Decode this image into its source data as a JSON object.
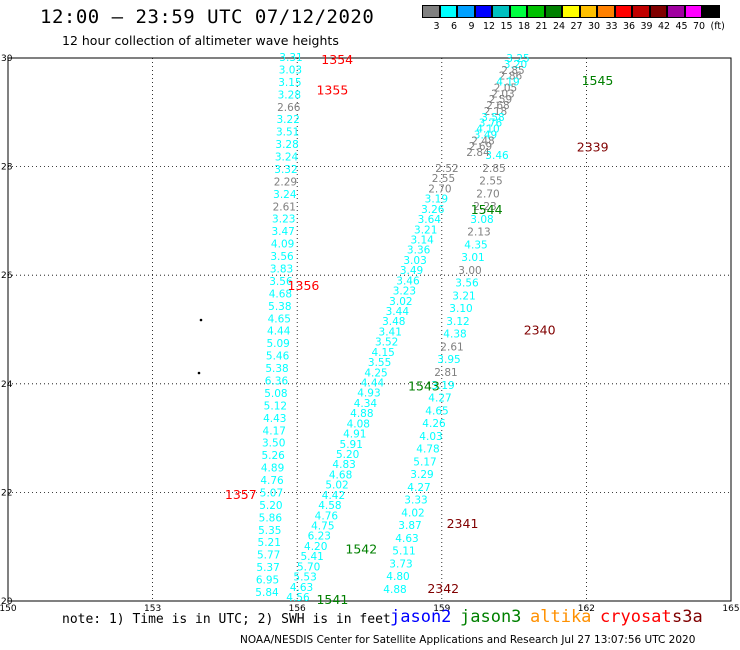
{
  "header": {
    "title": "12:00 – 23:59 UTC 07/12/2020",
    "subtitle": "12 hour collection of altimeter wave heights"
  },
  "colorbar": {
    "ticks": [
      "3",
      "6",
      "9",
      "12",
      "15",
      "18",
      "21",
      "24",
      "27",
      "30",
      "33",
      "36",
      "39",
      "42",
      "45",
      "70",
      "(ft)"
    ],
    "colors": [
      "#808080",
      "#00ffff",
      "#00a0ff",
      "#0000ff",
      "#00c0c0",
      "#00ff40",
      "#00c000",
      "#008000",
      "#ffff00",
      "#ffc000",
      "#ff8000",
      "#ff0000",
      "#c00000",
      "#800000",
      "#a000a0",
      "#ff00ff",
      "#000000"
    ]
  },
  "note": "note: 1) Time is in UTC; 2) SWH is in feet",
  "satellites": [
    {
      "name": "jason2",
      "color": "#0000ff"
    },
    {
      "name": "jason3",
      "color": "#008000"
    },
    {
      "name": "altika",
      "color": "#ff9000"
    },
    {
      "name": "cryosat",
      "color": "#ff0000"
    },
    {
      "name": "s3a",
      "color": "#800000"
    }
  ],
  "footer": "NOAA/NESDIS Center for Satellite Applications and Research   Jul 27 13:07:56 UTC 2020",
  "chart_data": {
    "type": "scatter",
    "xlim": [
      150,
      165
    ],
    "ylim": [
      20,
      30
    ],
    "xticks": [
      "150",
      "153",
      "156",
      "159",
      "162",
      "165"
    ],
    "yticks": [
      "20",
      "22",
      "24",
      "26",
      "28",
      "30"
    ],
    "grid": true,
    "pass_labels": [
      {
        "text": "1354",
        "x": 156.5,
        "y": 29.96,
        "color": "#ff0000"
      },
      {
        "text": "1355",
        "x": 156.4,
        "y": 29.4,
        "color": "#ff0000"
      },
      {
        "text": "1356",
        "x": 155.8,
        "y": 25.8,
        "color": "#ff0000"
      },
      {
        "text": "1357",
        "x": 154.5,
        "y": 21.95,
        "color": "#ff0000"
      },
      {
        "text": "1545",
        "x": 161.9,
        "y": 29.58,
        "color": "#008000"
      },
      {
        "text": "1544",
        "x": 159.6,
        "y": 27.2,
        "color": "#008000"
      },
      {
        "text": "1543",
        "x": 158.3,
        "y": 23.95,
        "color": "#008000"
      },
      {
        "text": "1542",
        "x": 157.0,
        "y": 20.95,
        "color": "#008000"
      },
      {
        "text": "1541",
        "x": 156.4,
        "y": 20.02,
        "color": "#008000"
      },
      {
        "text": "2339",
        "x": 161.8,
        "y": 28.35,
        "color": "#800000"
      },
      {
        "text": "2340",
        "x": 160.7,
        "y": 24.98,
        "color": "#800000"
      },
      {
        "text": "2341",
        "x": 159.1,
        "y": 21.42,
        "color": "#800000"
      },
      {
        "text": "2342",
        "x": 158.7,
        "y": 20.22,
        "color": "#800000"
      }
    ],
    "tracks": [
      {
        "x0": 155.75,
        "y0": 29.95,
        "x1": 155.5,
        "y1": 28.4,
        "values": [
          "3.31",
          "3.03",
          "3.15",
          "3.28",
          "2.66",
          "3.22",
          "3.51",
          "3.28",
          "3.24",
          "3.32",
          "2.29",
          "3.24",
          "2.61",
          "3.23",
          "3.47",
          "4.09",
          "3.56",
          "3.83",
          "3.56",
          "4.68",
          "5.38",
          "4.65",
          "4.44",
          "5.09",
          "5.46",
          "5.38",
          "6.36",
          "5.08",
          "5.12",
          "4.43",
          "4.17",
          "3.50",
          "5.26",
          "4.89",
          "4.76",
          "5.07",
          "5.20",
          "5.86",
          "5.35",
          "5.21",
          "5.77",
          "5.37",
          "6.95",
          "5.84"
        ],
        "colors": [
          "#00ffff",
          "#00ffff",
          "#00ffff",
          "#00ffff",
          "#808080",
          "#00ffff",
          "#00ffff",
          "#00ffff",
          "#00ffff",
          "#00ffff",
          "#808080",
          "#00ffff",
          "#808080",
          "#00ffff",
          "#00ffff",
          "#00ffff",
          "#00ffff",
          "#00ffff",
          "#00ffff",
          "#00ffff",
          "#00ffff",
          "#00ffff",
          "#00ffff",
          "#00ffff",
          "#00ffff",
          "#00ffff",
          "#00ffff",
          "#00ffff",
          "#00ffff",
          "#00ffff",
          "#00ffff",
          "#00ffff",
          "#00ffff",
          "#00ffff",
          "#00ffff",
          "#00ffff",
          "#00ffff",
          "#00ffff",
          "#00ffff",
          "#00ffff",
          "#00ffff",
          "#00ffff",
          "#00ffff",
          "#00ffff"
        ]
      },
      {
        "values": [
          "4.56",
          "4.63",
          "5.53",
          "5.70",
          "5.41",
          "4.20",
          "6.23",
          "4.75",
          "4.76",
          "4.58",
          "4.42",
          "5.02",
          "4.68",
          "4.83",
          "5.20",
          "5.91",
          "4.91",
          "4.08",
          "4.88",
          "4.34",
          "4.93",
          "4.44",
          "4.25",
          "3.55",
          "4.15",
          "3.52",
          "3.41",
          "3.48",
          "3.44",
          "3.02",
          "3.23",
          "3.46",
          "3.49",
          "3.03",
          "3.36",
          "3.14",
          "3.21",
          "3.64",
          "3.26",
          "3.19",
          "2.70",
          "2.55",
          "2.52"
        ]
      },
      {
        "values": [
          "4.88",
          "4.80",
          "3.73",
          "5.11",
          "4.63",
          "3.87",
          "4.02",
          "3.33",
          "4.27",
          "3.29",
          "5.17",
          "4.78",
          "4.03",
          "4.26",
          "4.65",
          "4.27",
          "3.19",
          "2.81",
          "3.95",
          "2.61",
          "4.38",
          "3.12",
          "3.10",
          "3.21",
          "3.56",
          "3.00",
          "3.01",
          "4.35",
          "2.13",
          "3.08",
          "2.23",
          "2.70",
          "2.55",
          "2.85",
          "3.46"
        ]
      },
      {
        "values": [
          "3.25",
          "3.20",
          "2.85",
          "2.86",
          "4.19",
          "2.05",
          "2.03",
          "2.59",
          "2.68",
          "2.18",
          "3.58",
          "3.76",
          "4.10",
          "3.49",
          "2.48",
          "2.69",
          "2.84"
        ]
      }
    ]
  }
}
